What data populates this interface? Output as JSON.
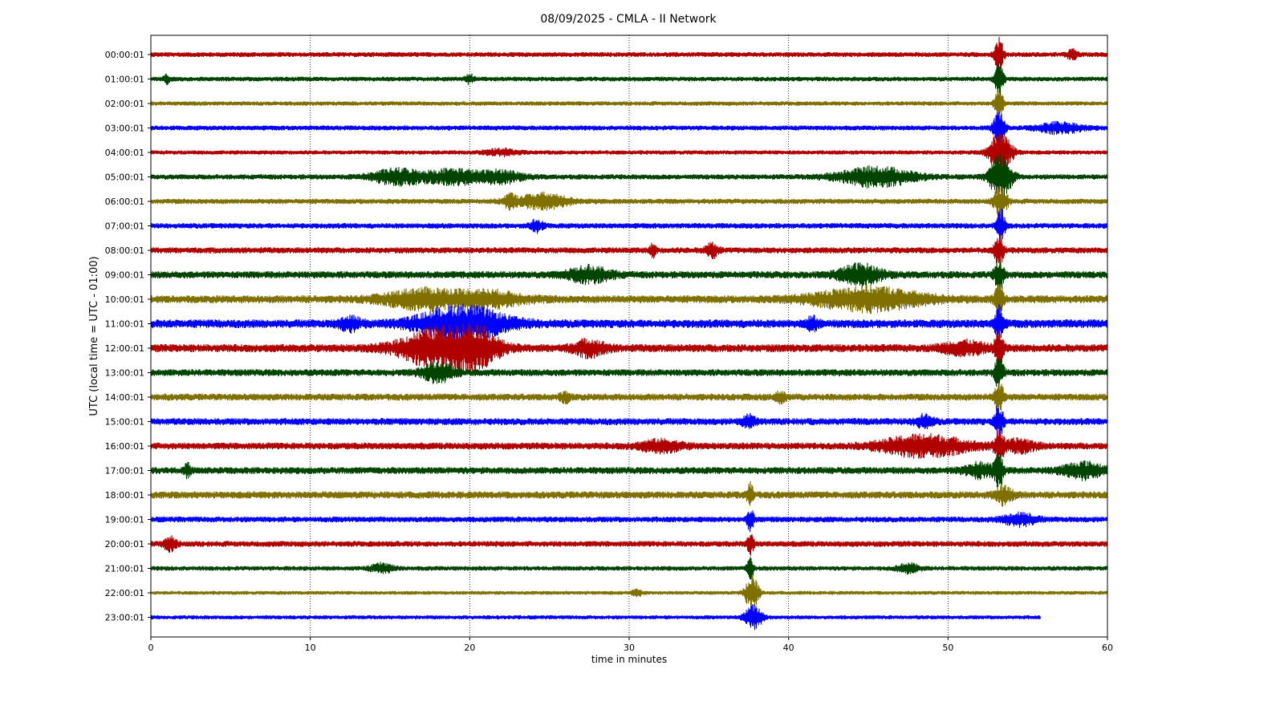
{
  "chart_data": {
    "type": "line",
    "title": "08/09/2025 - CMLA - II Network",
    "xlabel": "time in minutes",
    "ylabel": "UTC (local time = UTC - 01:00)",
    "xlim": [
      0,
      60
    ],
    "x_ticks": [
      0,
      10,
      20,
      30,
      40,
      50,
      60
    ],
    "grid": "vertical dotted lines at x ticks",
    "row_colors": [
      "#b00000",
      "#004400",
      "#7f7000",
      "#0000ff"
    ],
    "rows": [
      {
        "label": "00:00:01",
        "noise": 0.3,
        "events": [
          {
            "t": 53.2,
            "amp": 2.2,
            "dur": 0.4
          },
          {
            "t": 57.8,
            "amp": 0.6,
            "dur": 0.5
          }
        ]
      },
      {
        "label": "01:00:01",
        "noise": 0.28,
        "events": [
          {
            "t": 1.0,
            "amp": 0.5,
            "dur": 0.3
          },
          {
            "t": 20.0,
            "amp": 0.6,
            "dur": 0.4
          },
          {
            "t": 53.2,
            "amp": 2.2,
            "dur": 0.4
          }
        ]
      },
      {
        "label": "02:00:01",
        "noise": 0.26,
        "events": [
          {
            "t": 53.2,
            "amp": 2.2,
            "dur": 0.4
          }
        ]
      },
      {
        "label": "03:00:01",
        "noise": 0.3,
        "events": [
          {
            "t": 53.2,
            "amp": 2.4,
            "dur": 0.5
          },
          {
            "t": 57.0,
            "amp": 0.7,
            "dur": 2.0
          }
        ]
      },
      {
        "label": "04:00:01",
        "noise": 0.26,
        "events": [
          {
            "t": 22.0,
            "amp": 0.4,
            "dur": 1.5
          },
          {
            "t": 53.3,
            "amp": 3.0,
            "dur": 1.0
          }
        ]
      },
      {
        "label": "05:00:01",
        "noise": 0.32,
        "events": [
          {
            "t": 15.5,
            "amp": 1.0,
            "dur": 2.5
          },
          {
            "t": 19.0,
            "amp": 1.0,
            "dur": 2.5
          },
          {
            "t": 22.0,
            "amp": 0.8,
            "dur": 2.0
          },
          {
            "t": 45.5,
            "amp": 1.3,
            "dur": 3.5
          },
          {
            "t": 53.3,
            "amp": 3.0,
            "dur": 1.0
          }
        ]
      },
      {
        "label": "06:00:01",
        "noise": 0.32,
        "events": [
          {
            "t": 22.5,
            "amp": 0.8,
            "dur": 0.5
          },
          {
            "t": 24.5,
            "amp": 1.0,
            "dur": 2.5
          },
          {
            "t": 53.3,
            "amp": 2.2,
            "dur": 0.6
          }
        ]
      },
      {
        "label": "07:00:01",
        "noise": 0.34,
        "events": [
          {
            "t": 24.2,
            "amp": 0.8,
            "dur": 0.6
          },
          {
            "t": 53.3,
            "amp": 2.2,
            "dur": 0.4
          }
        ]
      },
      {
        "label": "08:00:01",
        "noise": 0.38,
        "events": [
          {
            "t": 31.5,
            "amp": 0.8,
            "dur": 0.3
          },
          {
            "t": 35.2,
            "amp": 1.0,
            "dur": 0.6
          },
          {
            "t": 53.2,
            "amp": 2.2,
            "dur": 0.4
          }
        ]
      },
      {
        "label": "09:00:01",
        "noise": 0.46,
        "events": [
          {
            "t": 27.5,
            "amp": 1.0,
            "dur": 2.0
          },
          {
            "t": 44.5,
            "amp": 1.3,
            "dur": 2.0
          },
          {
            "t": 53.2,
            "amp": 2.2,
            "dur": 0.4
          }
        ]
      },
      {
        "label": "10:00:01",
        "noise": 0.5,
        "events": [
          {
            "t": 17.0,
            "amp": 1.2,
            "dur": 3.5
          },
          {
            "t": 21.0,
            "amp": 1.0,
            "dur": 3.5
          },
          {
            "t": 45.0,
            "amp": 1.5,
            "dur": 5.0
          },
          {
            "t": 53.2,
            "amp": 2.2,
            "dur": 0.4
          }
        ]
      },
      {
        "label": "11:00:01",
        "noise": 0.56,
        "events": [
          {
            "t": 19.5,
            "amp": 2.3,
            "dur": 4.0
          },
          {
            "t": 12.5,
            "amp": 0.8,
            "dur": 1.0
          },
          {
            "t": 41.5,
            "amp": 0.8,
            "dur": 0.5
          },
          {
            "t": 53.2,
            "amp": 2.2,
            "dur": 0.4
          }
        ]
      },
      {
        "label": "12:00:01",
        "noise": 0.52,
        "events": [
          {
            "t": 18.0,
            "amp": 2.6,
            "dur": 3.5
          },
          {
            "t": 20.5,
            "amp": 2.2,
            "dur": 2.0
          },
          {
            "t": 27.5,
            "amp": 1.0,
            "dur": 1.5
          },
          {
            "t": 51.0,
            "amp": 0.8,
            "dur": 2.0
          },
          {
            "t": 53.2,
            "amp": 2.2,
            "dur": 0.4
          }
        ]
      },
      {
        "label": "13:00:01",
        "noise": 0.44,
        "events": [
          {
            "t": 18.0,
            "amp": 1.2,
            "dur": 1.5
          },
          {
            "t": 53.2,
            "amp": 2.2,
            "dur": 0.4
          }
        ]
      },
      {
        "label": "14:00:01",
        "noise": 0.44,
        "events": [
          {
            "t": 26.0,
            "amp": 0.6,
            "dur": 0.5
          },
          {
            "t": 39.5,
            "amp": 0.6,
            "dur": 0.5
          },
          {
            "t": 53.2,
            "amp": 2.2,
            "dur": 0.4
          }
        ]
      },
      {
        "label": "15:00:01",
        "noise": 0.44,
        "events": [
          {
            "t": 37.5,
            "amp": 0.8,
            "dur": 0.6
          },
          {
            "t": 48.5,
            "amp": 0.8,
            "dur": 0.8
          },
          {
            "t": 53.2,
            "amp": 2.2,
            "dur": 0.4
          }
        ]
      },
      {
        "label": "16:00:01",
        "noise": 0.44,
        "events": [
          {
            "t": 32.0,
            "amp": 0.7,
            "dur": 2.0
          },
          {
            "t": 48.5,
            "amp": 1.4,
            "dur": 4.0
          },
          {
            "t": 54.5,
            "amp": 0.8,
            "dur": 1.5
          },
          {
            "t": 53.2,
            "amp": 2.2,
            "dur": 0.4
          }
        ]
      },
      {
        "label": "17:00:01",
        "noise": 0.44,
        "events": [
          {
            "t": 2.3,
            "amp": 0.8,
            "dur": 0.3
          },
          {
            "t": 52.0,
            "amp": 0.9,
            "dur": 1.5
          },
          {
            "t": 58.5,
            "amp": 1.0,
            "dur": 2.0
          },
          {
            "t": 53.2,
            "amp": 2.2,
            "dur": 0.4
          }
        ]
      },
      {
        "label": "18:00:01",
        "noise": 0.46,
        "events": [
          {
            "t": 53.5,
            "amp": 1.2,
            "dur": 0.8
          },
          {
            "t": 37.6,
            "amp": 1.5,
            "dur": 0.3
          }
        ]
      },
      {
        "label": "19:00:01",
        "noise": 0.36,
        "events": [
          {
            "t": 54.5,
            "amp": 0.8,
            "dur": 1.5
          },
          {
            "t": 37.6,
            "amp": 1.5,
            "dur": 0.3
          }
        ]
      },
      {
        "label": "20:00:01",
        "noise": 0.36,
        "events": [
          {
            "t": 1.2,
            "amp": 0.9,
            "dur": 0.6
          },
          {
            "t": 37.6,
            "amp": 1.5,
            "dur": 0.3
          }
        ]
      },
      {
        "label": "21:00:01",
        "noise": 0.28,
        "events": [
          {
            "t": 14.5,
            "amp": 0.6,
            "dur": 1.0
          },
          {
            "t": 47.5,
            "amp": 0.6,
            "dur": 1.0
          },
          {
            "t": 37.6,
            "amp": 1.5,
            "dur": 0.3
          }
        ]
      },
      {
        "label": "22:00:01",
        "noise": 0.22,
        "events": [
          {
            "t": 30.5,
            "amp": 0.4,
            "dur": 0.5
          },
          {
            "t": 37.7,
            "amp": 2.5,
            "dur": 0.6
          }
        ]
      },
      {
        "label": "23:00:01",
        "noise": 0.24,
        "end": 55.8,
        "events": [
          {
            "t": 37.8,
            "amp": 1.6,
            "dur": 0.8
          }
        ]
      }
    ]
  }
}
